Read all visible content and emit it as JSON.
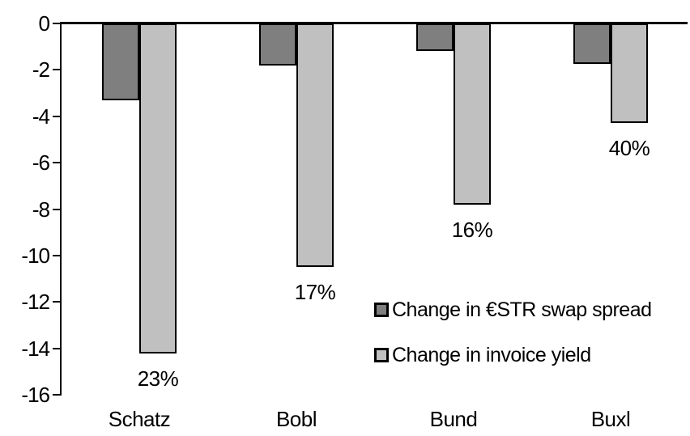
{
  "chart_data": {
    "type": "bar",
    "categories": [
      "Schatz",
      "Bobl",
      "Bund",
      "Buxl"
    ],
    "series": [
      {
        "name": "Change in €STR swap spread",
        "color": "#7F7F7F",
        "values": [
          -3.3,
          -1.8,
          -1.2,
          -1.75
        ]
      },
      {
        "name": "Change in invoice yield",
        "color": "#C0C0C0",
        "values": [
          -14.2,
          -10.5,
          -7.8,
          -4.3
        ],
        "point_labels": [
          "23%",
          "17%",
          "16%",
          "40%"
        ]
      }
    ],
    "title": "",
    "xlabel": "",
    "ylabel": "",
    "ylim": [
      -16,
      0
    ],
    "y_ticks": [
      0,
      -2,
      -4,
      -6,
      -8,
      -10,
      -12,
      -14,
      -16
    ],
    "grid": false,
    "legend_position": "inside-right",
    "axis_color": "#000000",
    "bar_border_color": "#000000"
  }
}
